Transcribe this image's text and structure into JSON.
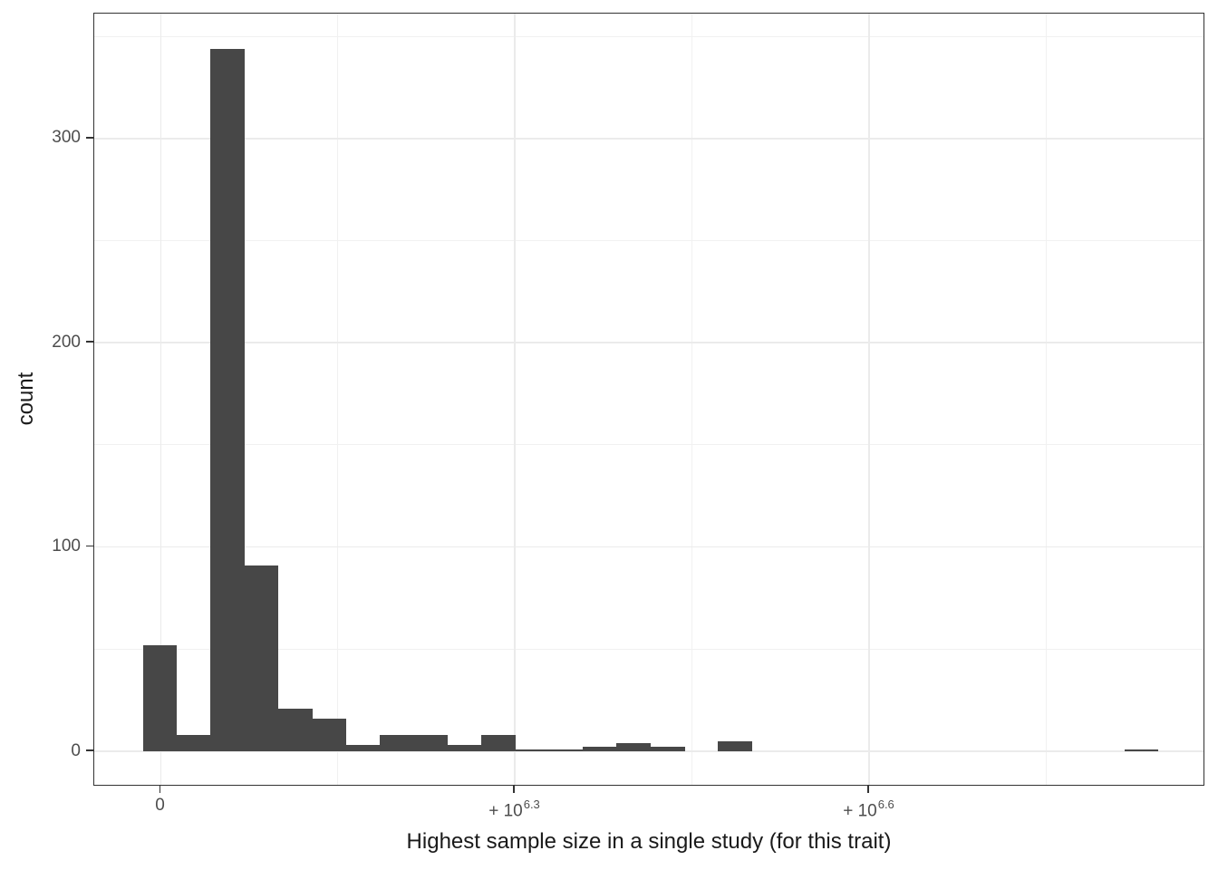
{
  "chart_data": {
    "type": "bar",
    "subtype": "histogram",
    "title": "",
    "xlabel": "Highest sample size in a single study (for this trait)",
    "ylabel": "count",
    "x_scale": "pseudo-log (signed log10 of sample size)",
    "x_ticks": [
      {
        "label": "0",
        "base": "0",
        "exp": ""
      },
      {
        "label": "+10^6.3",
        "base": "+ 10",
        "exp": "6.3"
      },
      {
        "label": "+10^6.6",
        "base": "+ 10",
        "exp": "6.6"
      }
    ],
    "y_ticks": [
      0,
      100,
      200,
      300
    ],
    "y_minor_ticks": [
      50,
      150,
      250,
      350
    ],
    "ylim": [
      -17,
      361
    ],
    "grid": "major and minor, light gray on white",
    "legend": false,
    "bins": {
      "n_bins": 30,
      "counts": [
        52,
        8,
        344,
        91,
        21,
        16,
        3,
        8,
        8,
        3,
        8,
        1,
        1,
        2,
        4,
        2,
        0,
        5,
        0,
        0,
        0,
        0,
        0,
        0,
        0,
        0,
        0,
        0,
        0,
        1
      ],
      "peak_count": 344
    },
    "colors": {
      "bar_fill": "#474747",
      "grid_major": "#EBEBEB",
      "grid_minor": "#F1F1F1",
      "panel_border": "#333333",
      "tick_text": "#4D4D4D",
      "title_text": "#1A1A1A",
      "background": "#FFFFFF"
    }
  }
}
